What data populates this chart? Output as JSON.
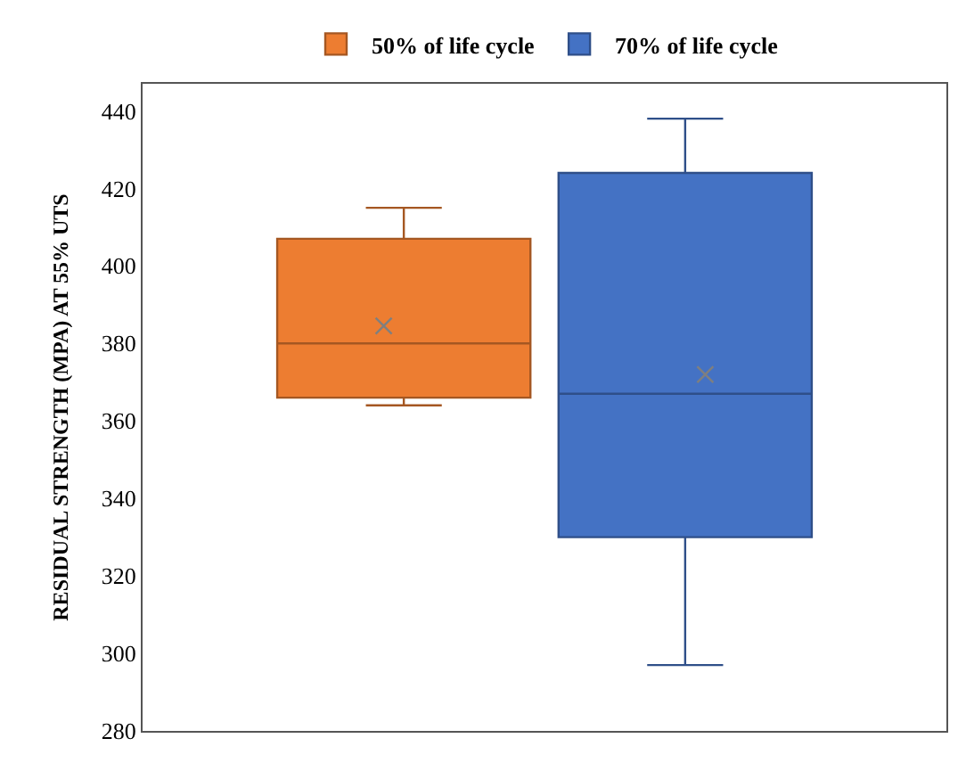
{
  "chart_data": {
    "type": "box",
    "ylabel": "RESIDUAL STRENGTH (MPA) AT 55% UTS",
    "categories": [
      null
    ],
    "series": [
      {
        "name": "50% of life cycle",
        "color": "#ed7d31",
        "boxes": [
          {
            "low": 364,
            "q1": 366,
            "median": 380,
            "q3": 407,
            "high": 415,
            "mean": 384.5
          }
        ]
      },
      {
        "name": "70% of life cycle",
        "color": "#4472c4",
        "boxes": [
          {
            "low": 297,
            "q1": 330,
            "median": 367,
            "q3": 424,
            "high": 438,
            "mean": 372
          }
        ]
      }
    ],
    "ylim": [
      280,
      447
    ],
    "yticks": [
      280,
      300,
      320,
      340,
      360,
      380,
      400,
      420,
      440
    ],
    "legend": "top",
    "marker": "cross"
  }
}
